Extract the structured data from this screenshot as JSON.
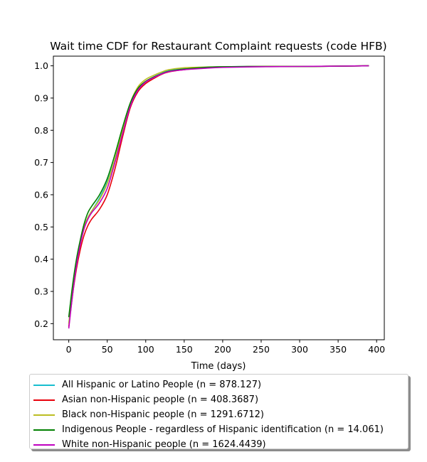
{
  "chart_data": {
    "type": "line",
    "title": "Wait time CDF for Restaurant Complaint  requests (code HFB)",
    "xlabel": "Time (days)",
    "ylabel": "",
    "xlim": [
      -20,
      410
    ],
    "ylim": [
      0.15,
      1.03
    ],
    "xticks": [
      0,
      50,
      100,
      150,
      200,
      250,
      300,
      350,
      400
    ],
    "yticks": [
      0.2,
      0.3,
      0.4,
      0.5,
      0.6,
      0.7,
      0.8,
      0.9,
      1.0
    ],
    "xtick_labels": [
      "0",
      "50",
      "100",
      "150",
      "200",
      "250",
      "300",
      "350",
      "400"
    ],
    "ytick_labels": [
      "0.2",
      "0.3",
      "0.4",
      "0.5",
      "0.6",
      "0.7",
      "0.8",
      "0.9",
      "1.0"
    ],
    "grid": false,
    "legend_position": "below",
    "series": [
      {
        "name": "All Hispanic or Latino People (n = 878.127)",
        "color": "#17becf",
        "x": [
          0,
          5,
          10,
          15,
          20,
          25,
          30,
          40,
          50,
          60,
          70,
          80,
          90,
          100,
          110,
          120,
          130,
          150,
          175,
          200,
          250,
          300,
          350,
          390
        ],
        "y": [
          0.2,
          0.3,
          0.38,
          0.45,
          0.5,
          0.53,
          0.55,
          0.59,
          0.64,
          0.71,
          0.8,
          0.88,
          0.925,
          0.95,
          0.965,
          0.976,
          0.985,
          0.991,
          0.995,
          0.997,
          0.998,
          0.998,
          0.999,
          1.0
        ]
      },
      {
        "name": "Asian non-Hispanic people (n = 408.3687)",
        "color": "#e8000b",
        "x": [
          0,
          5,
          10,
          15,
          20,
          25,
          30,
          40,
          50,
          60,
          70,
          80,
          90,
          100,
          110,
          120,
          130,
          150,
          175,
          200,
          250,
          300,
          350,
          390
        ],
        "y": [
          0.19,
          0.29,
          0.37,
          0.43,
          0.475,
          0.505,
          0.525,
          0.555,
          0.6,
          0.68,
          0.78,
          0.87,
          0.92,
          0.945,
          0.96,
          0.973,
          0.981,
          0.988,
          0.993,
          0.996,
          0.998,
          0.998,
          0.999,
          1.0
        ]
      },
      {
        "name": "Black non-Hispanic people (n = 1291.6712)",
        "color": "#bcbd22",
        "x": [
          0,
          5,
          10,
          15,
          20,
          25,
          30,
          40,
          50,
          60,
          70,
          80,
          90,
          100,
          110,
          120,
          130,
          150,
          175,
          200,
          250,
          300,
          350,
          390
        ],
        "y": [
          0.2,
          0.3,
          0.385,
          0.45,
          0.5,
          0.53,
          0.55,
          0.585,
          0.635,
          0.71,
          0.8,
          0.885,
          0.935,
          0.958,
          0.97,
          0.98,
          0.988,
          0.994,
          0.996,
          0.997,
          0.998,
          0.998,
          0.999,
          1.0
        ]
      },
      {
        "name": "Indigenous People - regardless of Hispanic identification (n = 14.061)",
        "color": "#008000",
        "x": [
          0,
          5,
          10,
          15,
          20,
          25,
          30,
          40,
          50,
          60,
          70,
          80,
          90,
          100,
          110,
          120,
          130,
          150,
          175,
          200,
          250,
          300,
          350,
          390
        ],
        "y": [
          0.22,
          0.32,
          0.4,
          0.46,
          0.51,
          0.545,
          0.565,
          0.6,
          0.65,
          0.725,
          0.81,
          0.885,
          0.93,
          0.952,
          0.965,
          0.975,
          0.983,
          0.99,
          0.995,
          0.997,
          0.998,
          0.998,
          0.999,
          1.0
        ]
      },
      {
        "name": "White non-Hispanic people (n = 1624.4439)",
        "color": "#bf00bf",
        "x": [
          0,
          5,
          10,
          15,
          20,
          25,
          30,
          40,
          50,
          60,
          70,
          80,
          90,
          100,
          110,
          120,
          130,
          150,
          175,
          200,
          250,
          300,
          350,
          390
        ],
        "y": [
          0.185,
          0.29,
          0.38,
          0.445,
          0.495,
          0.525,
          0.545,
          0.575,
          0.62,
          0.7,
          0.79,
          0.875,
          0.925,
          0.95,
          0.963,
          0.974,
          0.982,
          0.988,
          0.992,
          0.995,
          0.997,
          0.998,
          0.999,
          1.0
        ]
      }
    ]
  }
}
